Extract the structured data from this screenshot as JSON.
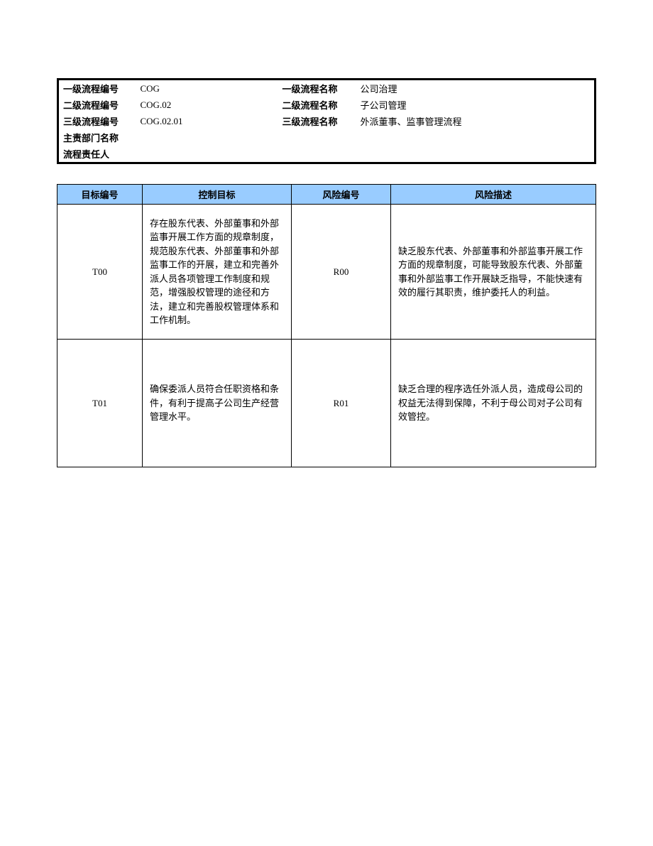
{
  "header": {
    "rows": [
      {
        "label1": "一级流程编号",
        "value1": "COG",
        "label2": "一级流程名称",
        "value2": "公司治理"
      },
      {
        "label1": "二级流程编号",
        "value1": "COG.02",
        "label2": "二级流程名称",
        "value2": "子公司管理"
      },
      {
        "label1": "三级流程编号",
        "value1": "COG.02.01",
        "label2": "三级流程名称",
        "value2": "外派董事、监事管理流程"
      },
      {
        "label1": "主责部门名称",
        "value1": "",
        "label2": "",
        "value2": ""
      },
      {
        "label1": "流程责任人",
        "value1": "",
        "label2": "",
        "value2": ""
      }
    ]
  },
  "mainTable": {
    "headers": {
      "targetId": "目标编号",
      "controlTarget": "控制目标",
      "riskId": "风险编号",
      "riskDesc": "风险描述"
    },
    "rows": [
      {
        "targetId": "T00",
        "controlTarget": "存在股东代表、外部董事和外部监事开展工作方面的规章制度，规范股东代表、外部董事和外部监事工作的开展，建立和完善外派人员各项管理工作制度和规范，增强股权管理的途径和方法，建立和完善股权管理体系和工作机制。",
        "riskId": "R00",
        "riskDesc": "缺乏股东代表、外部董事和外部监事开展工作方面的规章制度，可能导致股东代表、外部董事和外部监事工作开展缺乏指导，不能快速有效的履行其职责，维护委托人的利益。"
      },
      {
        "targetId": "T01",
        "controlTarget": "确保委派人员符合任职资格和条件，有利于提高子公司生产经营管理水平。",
        "riskId": "R01",
        "riskDesc": "缺乏合理的程序选任外派人员，造成母公司的权益无法得到保障，不利于母公司对子公司有效管控。"
      }
    ]
  },
  "colors": {
    "headerBg": "#99ccff",
    "border": "#000000",
    "text": "#000000",
    "background": "#ffffff"
  }
}
